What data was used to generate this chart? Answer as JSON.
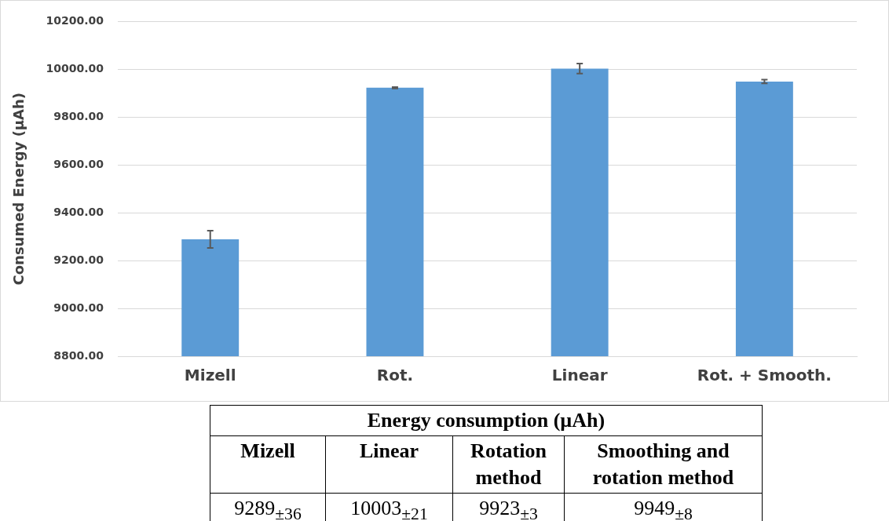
{
  "chart_data": {
    "type": "bar",
    "ylabel": "Consumed Energy (µAh)",
    "categories": [
      "Mizell",
      "Rot.",
      "Linear",
      "Rot. + Smooth."
    ],
    "values": [
      9289,
      9923,
      10003,
      9949
    ],
    "errors": [
      36,
      3,
      21,
      8
    ],
    "color": "#5b9bd5",
    "ylim": [
      8800,
      10200
    ],
    "yticks": [
      {
        "value": 8800,
        "label": "8800.00"
      },
      {
        "value": 9000,
        "label": "9000.00"
      },
      {
        "value": 9200,
        "label": "9200.00"
      },
      {
        "value": 9400,
        "label": "9400.00"
      },
      {
        "value": 9600,
        "label": "9600.00"
      },
      {
        "value": 9800,
        "label": "9800.00"
      },
      {
        "value": 10000,
        "label": "10000.00"
      },
      {
        "value": 10200,
        "label": "10200.00"
      }
    ],
    "grid": "y",
    "annotations": [
      "Energy consumption (µAh)",
      "Mizell",
      "Linear",
      "Rotation method",
      "Smoothing and rotation method",
      "9289$_{±36}$",
      "10003$_{±21}$",
      "9923$_{±3}$",
      "9949$_{±8}$"
    ]
  }
}
